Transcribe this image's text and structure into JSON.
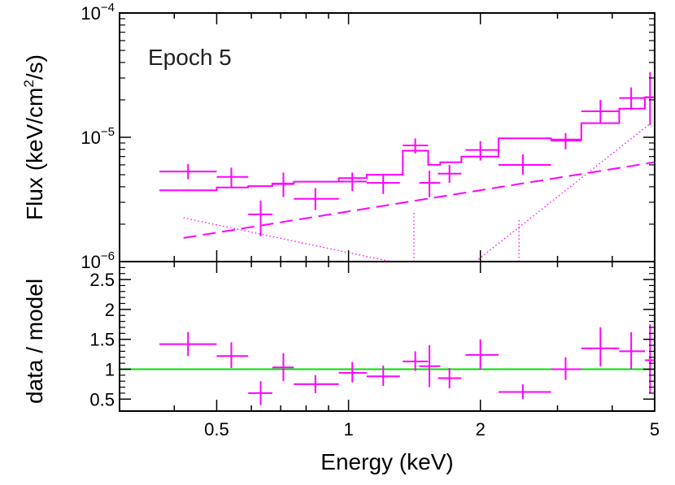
{
  "chart_data": {
    "type": "line",
    "title": "",
    "annotation": "Epoch 5",
    "xlabel": "Energy (keV)",
    "xscale": "log",
    "xlim": [
      0.3,
      5.0
    ],
    "x_ticks": [
      {
        "value": 0.5,
        "label": "0.5"
      },
      {
        "value": 1,
        "label": "1"
      },
      {
        "value": 2,
        "label": "2"
      },
      {
        "value": 5,
        "label": "5"
      }
    ],
    "colors": {
      "data": "#ff00ff",
      "model": "#ff00ff",
      "unity": "#00e000",
      "axis": "#000000"
    },
    "top_panel": {
      "ylabel_main": "Flux (keV/cm",
      "ylabel_sup": "2",
      "ylabel_end": "/s)",
      "yscale": "log",
      "ylim": [
        1e-06,
        0.0001
      ],
      "y_ticks": [
        {
          "value": 1e-06,
          "base": "10",
          "exp": "−6"
        },
        {
          "value": 1e-05,
          "base": "10",
          "exp": "−5"
        },
        {
          "value": 0.0001,
          "base": "10",
          "exp": "−4"
        }
      ],
      "data_points": [
        {
          "x": 0.43,
          "xlo": 0.37,
          "xhi": 0.5,
          "y": 5.3e-06,
          "ylo": 4.6e-06,
          "yhi": 6.1e-06
        },
        {
          "x": 0.54,
          "xlo": 0.5,
          "xhi": 0.59,
          "y": 4.8e-06,
          "ylo": 4e-06,
          "yhi": 5.7e-06
        },
        {
          "x": 0.63,
          "xlo": 0.59,
          "xhi": 0.67,
          "y": 2.4e-06,
          "ylo": 1.6e-06,
          "yhi": 3.1e-06
        },
        {
          "x": 0.71,
          "xlo": 0.67,
          "xhi": 0.75,
          "y": 4.2e-06,
          "ylo": 3.3e-06,
          "yhi": 5.2e-06
        },
        {
          "x": 0.84,
          "xlo": 0.75,
          "xhi": 0.95,
          "y": 3.2e-06,
          "ylo": 2.6e-06,
          "yhi": 3.9e-06
        },
        {
          "x": 1.02,
          "xlo": 0.95,
          "xhi": 1.1,
          "y": 4.4e-06,
          "ylo": 3.7e-06,
          "yhi": 5.2e-06
        },
        {
          "x": 1.2,
          "xlo": 1.1,
          "xhi": 1.31,
          "y": 4.3e-06,
          "ylo": 3.5e-06,
          "yhi": 5.1e-06
        },
        {
          "x": 1.42,
          "xlo": 1.33,
          "xhi": 1.52,
          "y": 8.6e-06,
          "ylo": 7.4e-06,
          "yhi": 9.8e-06
        },
        {
          "x": 1.53,
          "xlo": 1.45,
          "xhi": 1.62,
          "y": 4.3e-06,
          "ylo": 3.3e-06,
          "yhi": 5.4e-06
        },
        {
          "x": 1.7,
          "xlo": 1.6,
          "xhi": 1.81,
          "y": 5.1e-06,
          "ylo": 4.3e-06,
          "yhi": 6e-06
        },
        {
          "x": 2.0,
          "xlo": 1.85,
          "xhi": 2.2,
          "y": 7.9e-06,
          "ylo": 6.5e-06,
          "yhi": 9.3e-06
        },
        {
          "x": 2.5,
          "xlo": 2.2,
          "xhi": 2.9,
          "y": 6e-06,
          "ylo": 5e-06,
          "yhi": 7.3e-06
        },
        {
          "x": 3.13,
          "xlo": 2.9,
          "xhi": 3.4,
          "y": 9.4e-06,
          "ylo": 8e-06,
          "yhi": 1.08e-05
        },
        {
          "x": 3.76,
          "xlo": 3.4,
          "xhi": 4.15,
          "y": 1.62e-05,
          "ylo": 1.3e-05,
          "yhi": 2e-05
        },
        {
          "x": 4.42,
          "xlo": 4.15,
          "xhi": 4.75,
          "y": 2.07e-05,
          "ylo": 1.68e-05,
          "yhi": 2.52e-05
        },
        {
          "x": 4.88,
          "xlo": 4.75,
          "xhi": 5.0,
          "y": 2.1e-05,
          "ylo": 1.25e-05,
          "yhi": 3.35e-05
        }
      ],
      "model_total": {
        "x": [
          0.37,
          0.5,
          0.5,
          0.59,
          0.59,
          0.67,
          0.67,
          0.75,
          0.75,
          0.95,
          0.95,
          1.1,
          1.1,
          1.31,
          1.31,
          1.33,
          1.33,
          1.52,
          1.52,
          1.62,
          1.62,
          1.81,
          1.81,
          2.2,
          2.2,
          2.9,
          2.9,
          3.4,
          3.4,
          4.15,
          4.15,
          4.75,
          4.75,
          5.0
        ],
        "y": [
          3.75e-06,
          3.75e-06,
          3.95e-06,
          3.95e-06,
          4.05e-06,
          4.05e-06,
          4.25e-06,
          4.25e-06,
          4.4e-06,
          4.4e-06,
          4.7e-06,
          4.7e-06,
          5e-06,
          5e-06,
          5e-06,
          5e-06,
          7.8e-06,
          7.8e-06,
          6e-06,
          6e-06,
          6.3e-06,
          6.3e-06,
          7e-06,
          7e-06,
          9.8e-06,
          9.8e-06,
          9.6e-06,
          9.6e-06,
          1.3e-05,
          1.3e-05,
          1.7e-05,
          1.7e-05,
          2.1e-05,
          2.1e-05
        ]
      },
      "model_powerlaw": {
        "x1": 0.42,
        "y1": 1.55e-06,
        "x2": 5.0,
        "y2": 6.3e-06
      },
      "model_soft": {
        "x1": 0.42,
        "y1": 2.25e-06,
        "x2": 1.25,
        "y2": 1e-06
      },
      "model_hard": {
        "x1": 1.95,
        "y1": 1e-06,
        "x2": 4.9,
        "y2": 1.3e-05
      },
      "model_lines": [
        {
          "x": 1.41,
          "ytop": 2.5e-06
        },
        {
          "x": 2.45,
          "ytop": 2.2e-06
        }
      ]
    },
    "bottom_panel": {
      "ylabel": "data / model",
      "yscale": "linear",
      "ylim": [
        0.3,
        2.8
      ],
      "y_ticks": [
        {
          "value": 0.5,
          "label": "0.5"
        },
        {
          "value": 1,
          "label": "1"
        },
        {
          "value": 1.5,
          "label": "1.5"
        },
        {
          "value": 2,
          "label": "2"
        },
        {
          "value": 2.5,
          "label": "2.5"
        }
      ],
      "reference_line": 1.0,
      "data_points": [
        {
          "x": 0.43,
          "xlo": 0.37,
          "xhi": 0.5,
          "y": 1.42,
          "ylo": 1.22,
          "yhi": 1.62
        },
        {
          "x": 0.54,
          "xlo": 0.5,
          "xhi": 0.59,
          "y": 1.22,
          "ylo": 1.02,
          "yhi": 1.45
        },
        {
          "x": 0.63,
          "xlo": 0.59,
          "xhi": 0.67,
          "y": 0.6,
          "ylo": 0.4,
          "yhi": 0.8
        },
        {
          "x": 0.71,
          "xlo": 0.67,
          "xhi": 0.75,
          "y": 1.03,
          "ylo": 0.8,
          "yhi": 1.27
        },
        {
          "x": 0.84,
          "xlo": 0.75,
          "xhi": 0.95,
          "y": 0.75,
          "ylo": 0.6,
          "yhi": 0.9
        },
        {
          "x": 1.02,
          "xlo": 0.95,
          "xhi": 1.1,
          "y": 0.94,
          "ylo": 0.78,
          "yhi": 1.12
        },
        {
          "x": 1.2,
          "xlo": 1.1,
          "xhi": 1.31,
          "y": 0.88,
          "ylo": 0.72,
          "yhi": 1.06
        },
        {
          "x": 1.42,
          "xlo": 1.33,
          "xhi": 1.52,
          "y": 1.13,
          "ylo": 0.97,
          "yhi": 1.3
        },
        {
          "x": 1.53,
          "xlo": 1.45,
          "xhi": 1.62,
          "y": 1.05,
          "ylo": 0.7,
          "yhi": 1.4
        },
        {
          "x": 1.7,
          "xlo": 1.6,
          "xhi": 1.81,
          "y": 0.85,
          "ylo": 0.68,
          "yhi": 1.02
        },
        {
          "x": 2.0,
          "xlo": 1.85,
          "xhi": 2.2,
          "y": 1.24,
          "ylo": 1.0,
          "yhi": 1.5
        },
        {
          "x": 2.5,
          "xlo": 2.2,
          "xhi": 2.9,
          "y": 0.62,
          "ylo": 0.5,
          "yhi": 0.75
        },
        {
          "x": 3.13,
          "xlo": 2.9,
          "xhi": 3.4,
          "y": 1.0,
          "ylo": 0.82,
          "yhi": 1.2
        },
        {
          "x": 3.76,
          "xlo": 3.4,
          "xhi": 4.15,
          "y": 1.35,
          "ylo": 1.05,
          "yhi": 1.7
        },
        {
          "x": 4.42,
          "xlo": 4.15,
          "xhi": 4.75,
          "y": 1.3,
          "ylo": 1.0,
          "yhi": 1.62
        },
        {
          "x": 4.88,
          "xlo": 4.75,
          "xhi": 5.0,
          "y": 1.15,
          "ylo": 0.6,
          "yhi": 1.75
        }
      ]
    }
  }
}
